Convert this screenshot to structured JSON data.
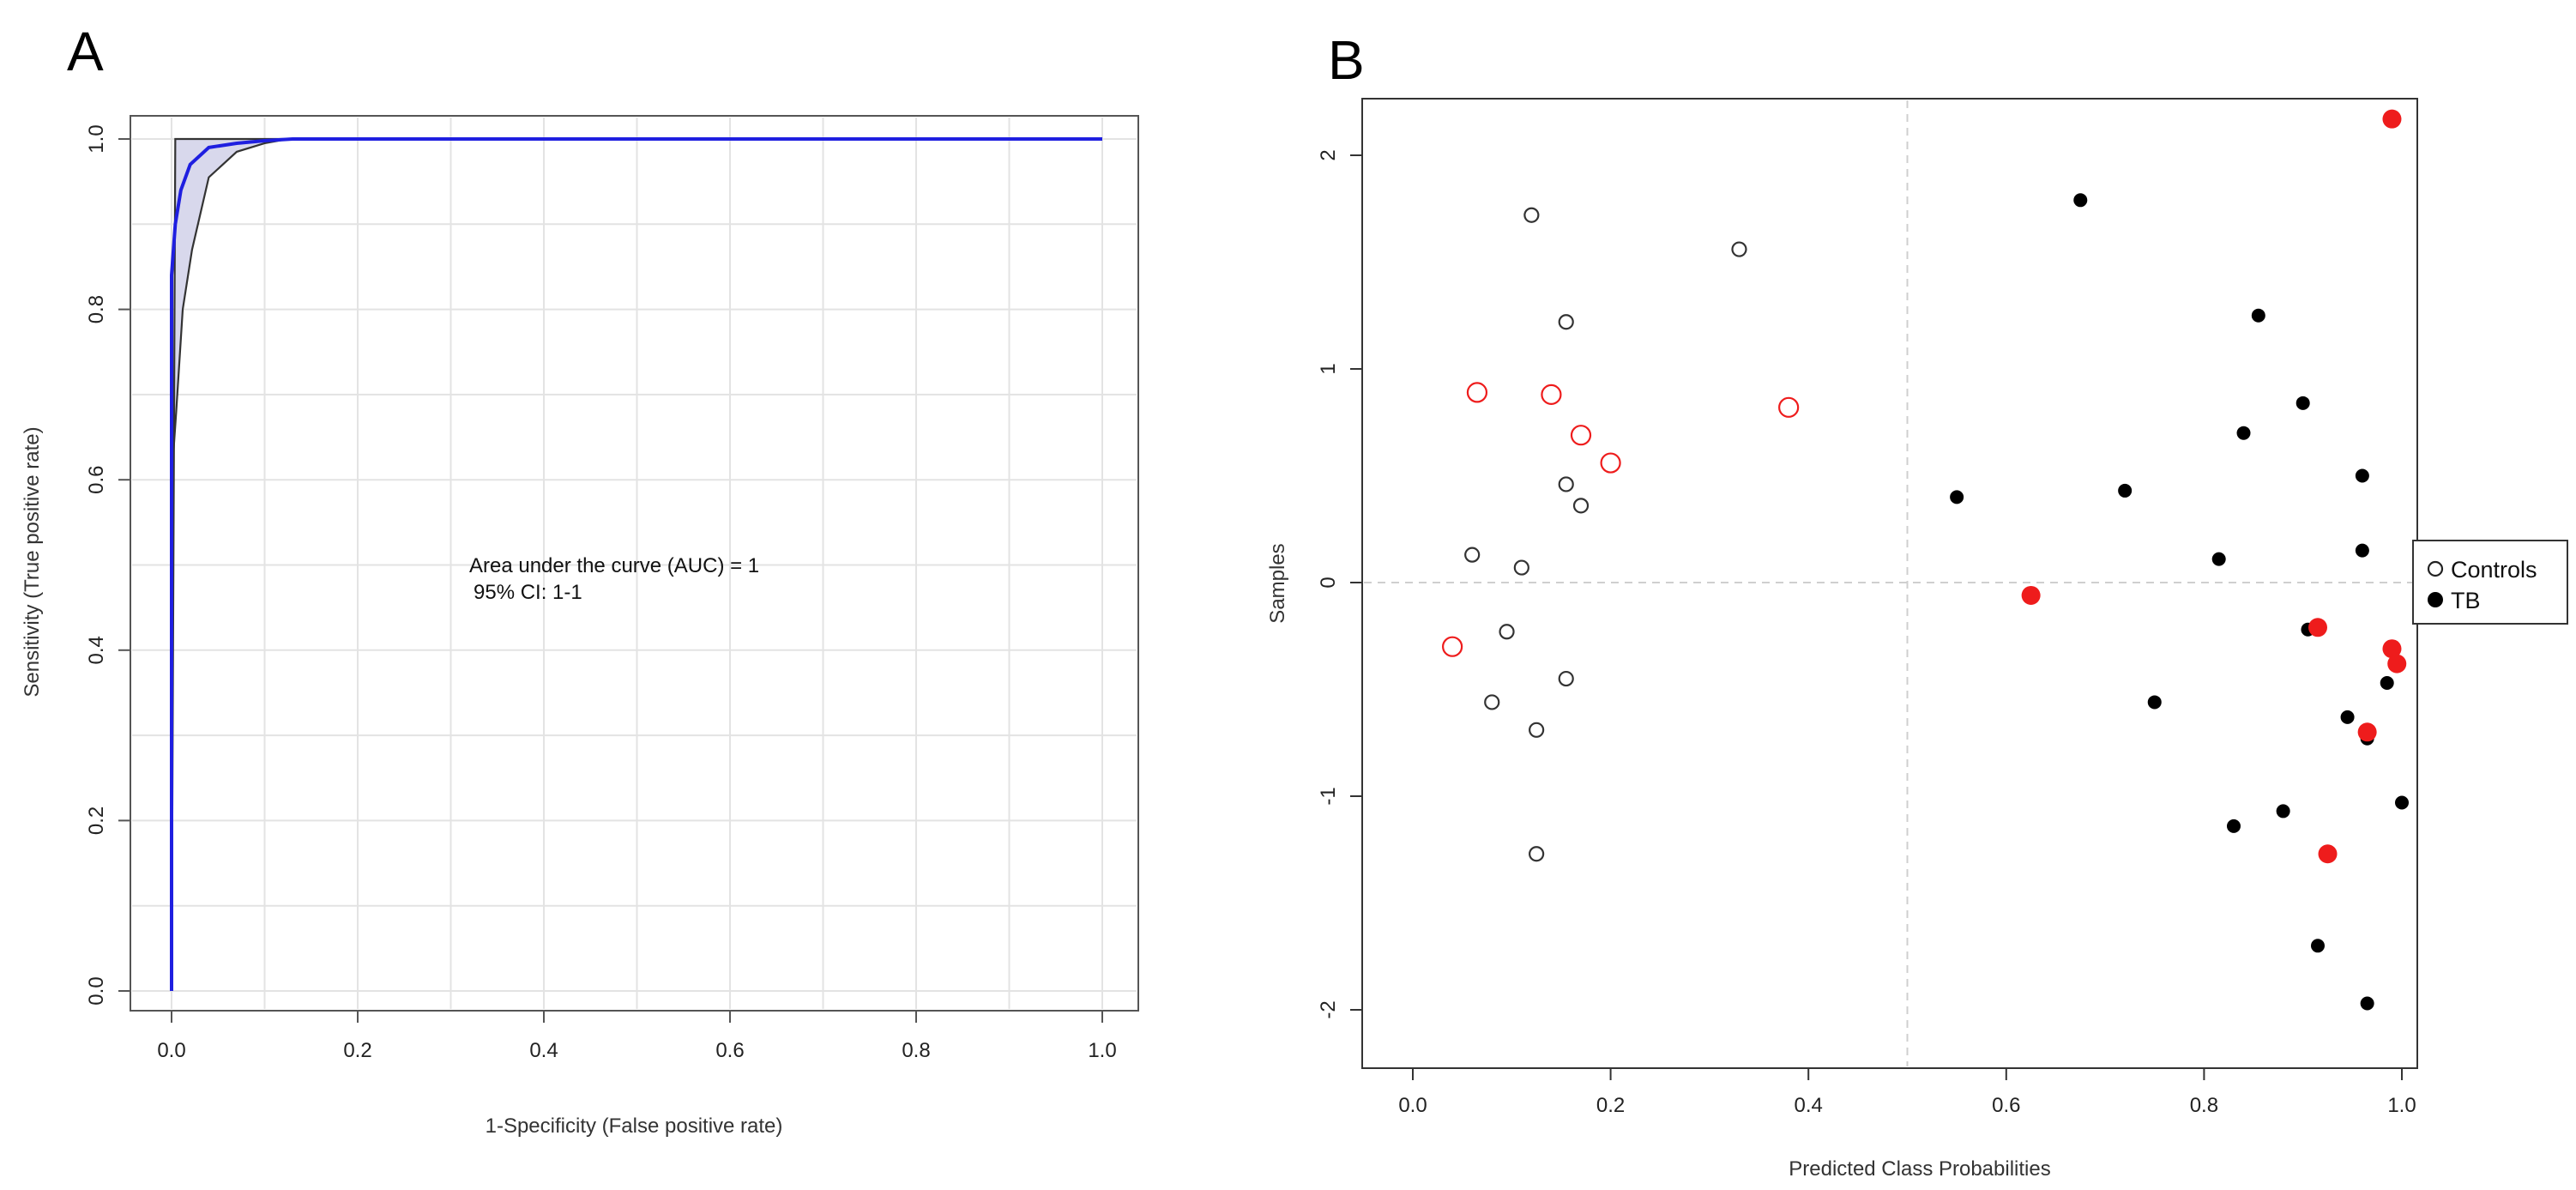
{
  "panels": {
    "a_letter": "A",
    "b_letter": "B"
  },
  "colors": {
    "roc_curve": "#1f1fe0",
    "ci_fill": "#d8d8ec",
    "ci_line": "#333333",
    "grid": "#e3e3e3",
    "highlight": "#ee1c1c",
    "dark": "#000000",
    "dashed": "#cfcfcf"
  },
  "chart_data": [
    {
      "type": "line",
      "panel": "A",
      "xlabel": "1-Specificity (False positive rate)",
      "ylabel": "Sensitivity (True positive rate)",
      "xlim": [
        0,
        1
      ],
      "ylim": [
        0,
        1
      ],
      "xticks": [
        "0.0",
        "0.2",
        "0.4",
        "0.6",
        "0.8",
        "1.0"
      ],
      "yticks": [
        "0.0",
        "0.2",
        "0.4",
        "0.6",
        "0.8",
        "1.0"
      ],
      "grid": true,
      "annotation": {
        "line1": "Area under the curve (AUC) = 1",
        "line2": "95% CI: 1-1"
      },
      "series": [
        {
          "name": "ROC",
          "x": [
            0,
            0,
            0.004,
            0.01,
            0.02,
            0.04,
            0.07,
            0.1,
            0.13,
            1.0
          ],
          "y": [
            0,
            0.84,
            0.9,
            0.94,
            0.97,
            0.99,
            0.995,
            0.998,
            1.0,
            1.0
          ]
        },
        {
          "name": "CI upper",
          "x": [
            0,
            0.004,
            1.0
          ],
          "y": [
            0,
            1.0,
            1.0
          ]
        },
        {
          "name": "CI lower",
          "x": [
            0,
            0,
            0.005,
            0.012,
            0.022,
            0.04,
            0.07,
            0.1,
            0.125,
            1.0
          ],
          "y": [
            0,
            0.6,
            0.68,
            0.8,
            0.87,
            0.955,
            0.985,
            0.995,
            1.0,
            1.0
          ]
        }
      ]
    },
    {
      "type": "scatter",
      "panel": "B",
      "xlabel": "Predicted Class Probabilities",
      "ylabel": "Samples",
      "xlim": [
        -0.04,
        1.04
      ],
      "ylim": [
        -2.2,
        2.25
      ],
      "xticks": [
        "0.0",
        "0.2",
        "0.4",
        "0.6",
        "0.8",
        "1.0"
      ],
      "yticks": [
        "-2",
        "-1",
        "0",
        "1",
        "2"
      ],
      "reference_lines": {
        "x": 0.5,
        "y": 0
      },
      "legend": {
        "position": "right",
        "items": [
          {
            "label": "Controls",
            "marker": "open-circle"
          },
          {
            "label": "TB",
            "marker": "filled-circle"
          }
        ]
      },
      "series": [
        {
          "name": "Controls",
          "highlight": false,
          "x": [
            0.12,
            0.33,
            0.155,
            0.155,
            0.17,
            0.06,
            0.11,
            0.095,
            0.155,
            0.08,
            0.125,
            0.125
          ],
          "y": [
            1.72,
            1.56,
            1.22,
            0.46,
            0.36,
            0.13,
            0.07,
            -0.23,
            -0.45,
            -0.56,
            -0.69,
            -1.27
          ]
        },
        {
          "name": "Controls",
          "highlight": true,
          "x": [
            0.065,
            0.14,
            0.38,
            0.17,
            0.2,
            0.04
          ],
          "y": [
            0.89,
            0.88,
            0.82,
            0.69,
            0.56,
            -0.3
          ]
        },
        {
          "name": "TB",
          "highlight": false,
          "x": [
            0.675,
            0.855,
            0.9,
            0.84,
            0.96,
            0.55,
            0.72,
            0.96,
            0.815,
            0.905,
            0.985,
            0.75,
            0.945,
            0.965,
            1.0,
            0.88,
            0.83,
            0.915,
            0.965
          ],
          "y": [
            1.79,
            1.25,
            0.84,
            0.7,
            0.5,
            0.4,
            0.43,
            0.15,
            0.11,
            -0.22,
            -0.47,
            -0.56,
            -0.63,
            -0.73,
            -1.03,
            -1.07,
            -1.14,
            -1.7,
            -1.97
          ]
        },
        {
          "name": "TB",
          "highlight": true,
          "x": [
            0.99,
            0.625,
            0.915,
            0.99,
            0.995,
            0.965,
            0.925
          ],
          "y": [
            2.17,
            -0.06,
            -0.21,
            -0.31,
            -0.38,
            -0.7,
            -1.27
          ]
        }
      ]
    }
  ]
}
